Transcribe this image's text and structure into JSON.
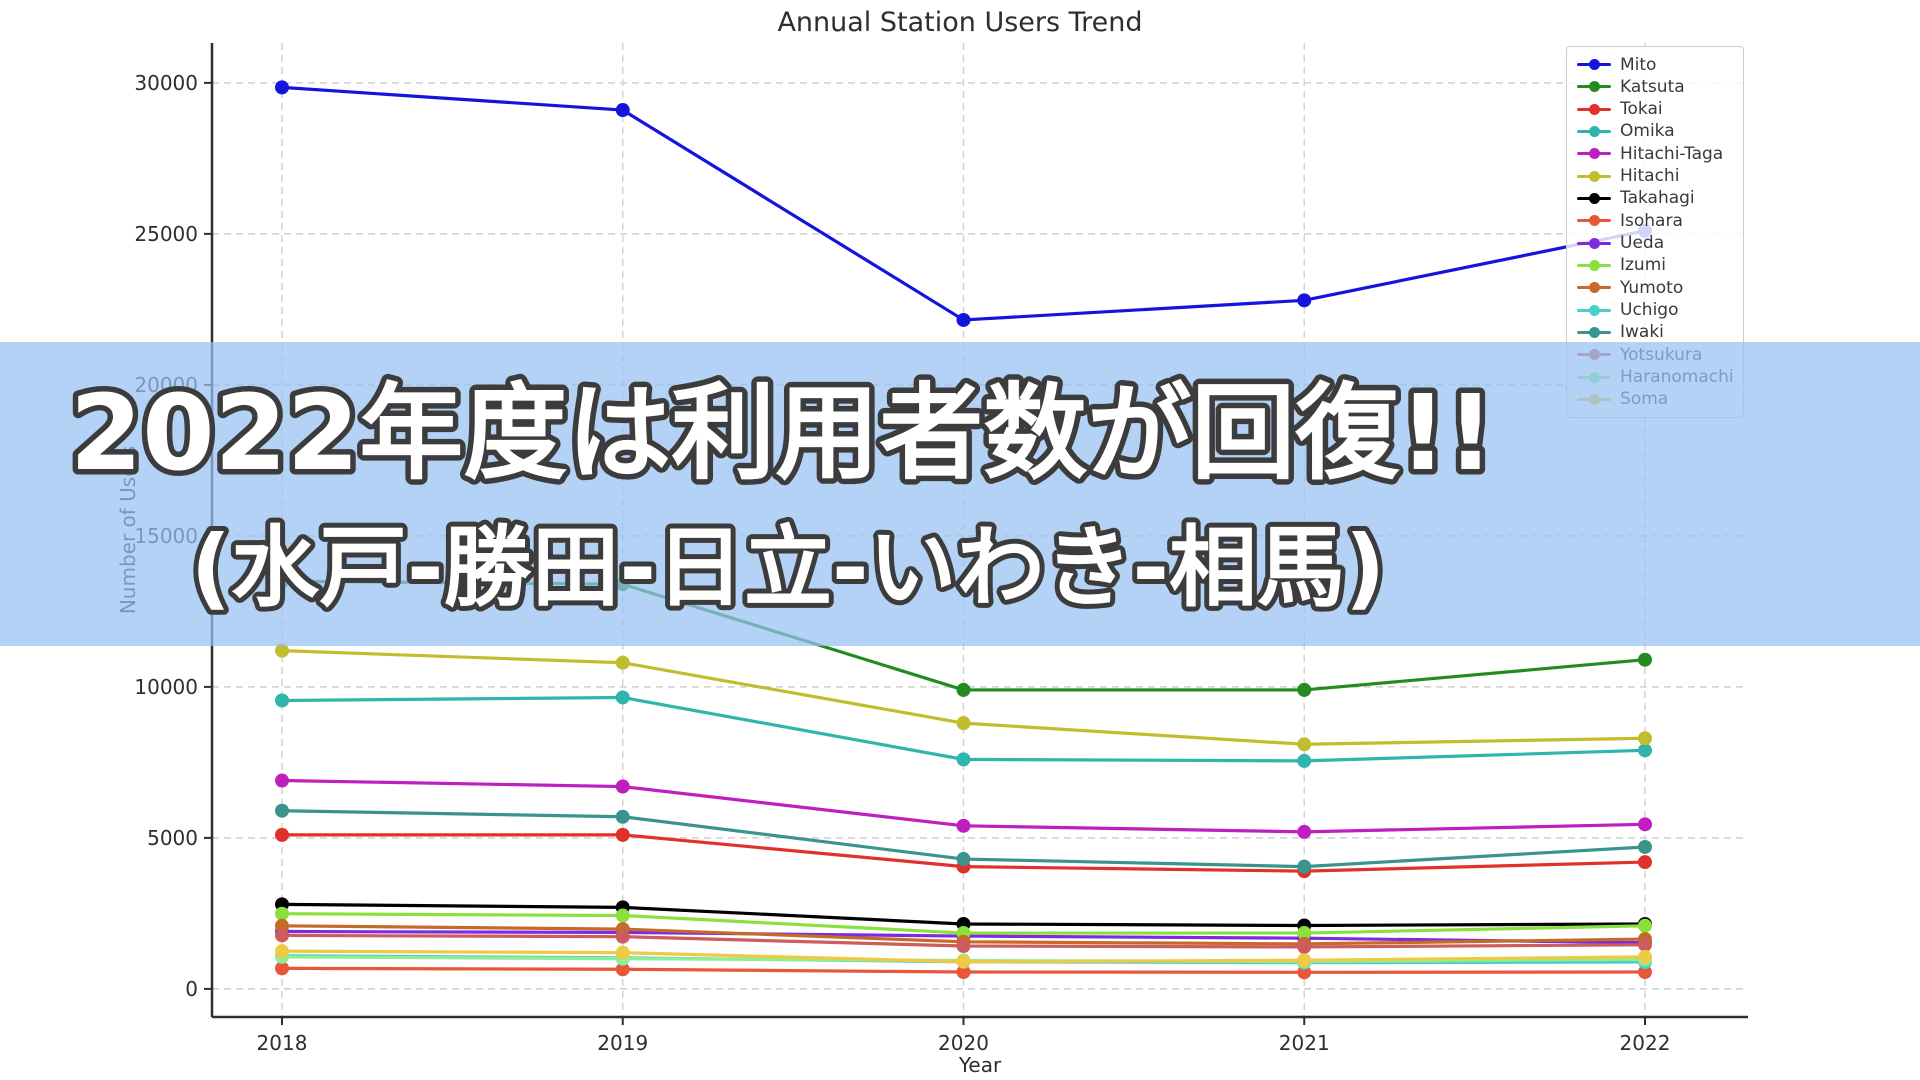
{
  "chart_data": {
    "type": "line",
    "title": "Annual Station Users Trend",
    "xlabel": "Year",
    "ylabel": "Number of Users",
    "x": [
      2018,
      2019,
      2020,
      2021,
      2022
    ],
    "yticks": [
      0,
      5000,
      10000,
      15000,
      20000,
      25000,
      30000
    ],
    "ylim": [
      -930,
      31320
    ],
    "grid": true,
    "grid_style": "dashed",
    "legend_position": "upper right",
    "marker": "o",
    "series": [
      {
        "name": "Mito",
        "color": "#1414dd",
        "values": [
          29850,
          29100,
          22150,
          22800,
          25100
        ]
      },
      {
        "name": "Katsuta",
        "color": "#228b22",
        "values": [
          13500,
          13400,
          9900,
          9900,
          10900
        ]
      },
      {
        "name": "Tokai",
        "color": "#e0312b",
        "values": [
          5100,
          5100,
          4050,
          3900,
          4200
        ]
      },
      {
        "name": "Omika",
        "color": "#2eb5ad",
        "values": [
          9550,
          9650,
          7600,
          7550,
          7900
        ]
      },
      {
        "name": "Hitachi-Taga",
        "color": "#bf1fbf",
        "values": [
          6900,
          6700,
          5400,
          5200,
          5450
        ]
      },
      {
        "name": "Hitachi",
        "color": "#c2bd2c",
        "values": [
          11200,
          10800,
          8800,
          8100,
          8300
        ]
      },
      {
        "name": "Takahagi",
        "color": "#000000",
        "values": [
          2800,
          2700,
          2150,
          2100,
          2150
        ]
      },
      {
        "name": "Isohara",
        "color": "#e8573a",
        "values": [
          680,
          650,
          560,
          550,
          560
        ]
      },
      {
        "name": "Ueda",
        "color": "#7d2ae0",
        "values": [
          1900,
          1870,
          1750,
          1680,
          1530
        ]
      },
      {
        "name": "Izumi",
        "color": "#8be13c",
        "values": [
          2490,
          2430,
          1850,
          1850,
          2090
        ]
      },
      {
        "name": "Yumoto",
        "color": "#c56a28",
        "values": [
          2090,
          1980,
          1560,
          1490,
          1650
        ]
      },
      {
        "name": "Uchigo",
        "color": "#48d1cc",
        "values": [
          1100,
          1030,
          900,
          870,
          890
        ]
      },
      {
        "name": "Iwaki",
        "color": "#3a948e",
        "values": [
          5900,
          5700,
          4300,
          4050,
          4700
        ]
      },
      {
        "name": "Yotsukura",
        "color": "#cd5c5c",
        "values": [
          1770,
          1730,
          1420,
          1390,
          1460
        ]
      },
      {
        "name": "Haranomachi",
        "color": "#90ee90",
        "values": [
          1060,
          1000,
          940,
          910,
          980
        ]
      },
      {
        "name": "Soma",
        "color": "#eec943",
        "values": [
          1250,
          1200,
          900,
          950,
          1060
        ]
      }
    ]
  },
  "overlay": {
    "line1": "2022年度は利用者数が回復!!",
    "line2": "(水戸-勝田-日立-いわき-相馬)",
    "band_color": "#b1d0f4"
  }
}
